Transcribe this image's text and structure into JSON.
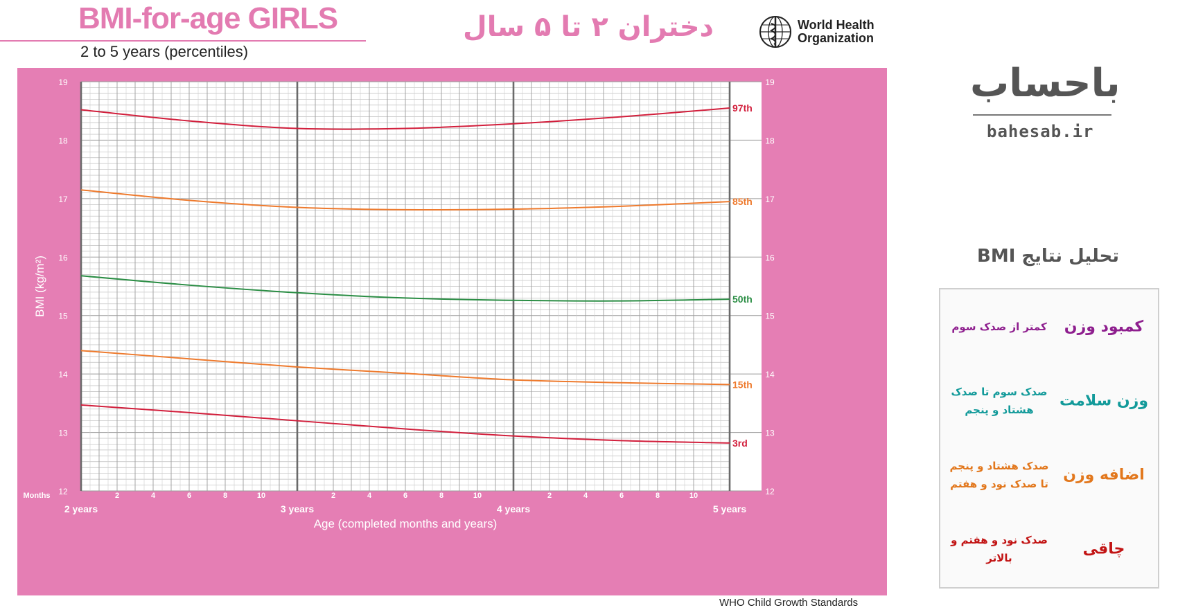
{
  "header": {
    "title": "BMI-for-age GIRLS",
    "subtitle": "2 to 5 years (percentiles)",
    "fa_title": "دختران ۲ تا ۵ سال",
    "who_line1": "World Health",
    "who_line2": "Organization"
  },
  "footer": {
    "source": "WHO Child Growth Standards"
  },
  "brand": {
    "name": "باحساب",
    "url": "bahesab.ir"
  },
  "results": {
    "title": "تحلیل نتایج BMI",
    "rows": [
      {
        "category": "کمبود وزن",
        "description": "کمتر از صدک سوم",
        "color": "#8e1e8e"
      },
      {
        "category": "وزن سلامت",
        "description": "صدک سوم تا صدک هشتاد و پنجم",
        "color": "#129a9a"
      },
      {
        "category": "اضافه وزن",
        "description": "صدک هشتاد و پنجم تا صدک نود و هفتم",
        "color": "#e2771c"
      },
      {
        "category": "چاقی",
        "description": "صدک نود و هفتم و بالاتر",
        "color": "#c21414"
      }
    ]
  },
  "chart_data": {
    "type": "line",
    "title": "BMI-for-age GIRLS",
    "xlabel": "Age (completed months and years)",
    "ylabel": "BMI (kg/m²)",
    "xlim": [
      24,
      60
    ],
    "ylim": [
      12,
      19
    ],
    "months_label": "Months",
    "year_ticks": [
      {
        "x": 24,
        "label": "2 years"
      },
      {
        "x": 36,
        "label": "3 years"
      },
      {
        "x": 48,
        "label": "4 years"
      },
      {
        "x": 60,
        "label": "5 years"
      }
    ],
    "month_ticks": [
      "2",
      "4",
      "6",
      "8",
      "10"
    ],
    "y_ticks": [
      12,
      13,
      14,
      15,
      16,
      17,
      18,
      19
    ],
    "colors": {
      "background": "#e57eb4",
      "grid": "#bdbdbd",
      "major_grid": "#6a6a6a"
    },
    "series": [
      {
        "name": "97th",
        "color": "#d21f3c",
        "x": [
          24,
          30,
          36,
          42,
          48,
          54,
          60
        ],
        "values": [
          18.52,
          18.33,
          18.2,
          18.2,
          18.28,
          18.4,
          18.55
        ]
      },
      {
        "name": "85th",
        "color": "#ee7a2d",
        "x": [
          24,
          30,
          36,
          42,
          48,
          54,
          60
        ],
        "values": [
          17.15,
          16.97,
          16.85,
          16.81,
          16.82,
          16.87,
          16.95
        ]
      },
      {
        "name": "50th",
        "color": "#2a8d44",
        "x": [
          24,
          30,
          36,
          42,
          48,
          54,
          60
        ],
        "values": [
          15.68,
          15.52,
          15.39,
          15.3,
          15.26,
          15.25,
          15.28
        ]
      },
      {
        "name": "15th",
        "color": "#ee7a2d",
        "x": [
          24,
          30,
          36,
          42,
          48,
          54,
          60
        ],
        "values": [
          14.4,
          14.26,
          14.12,
          14.01,
          13.9,
          13.85,
          13.82
        ]
      },
      {
        "name": "3rd",
        "color": "#d21f3c",
        "x": [
          24,
          30,
          36,
          42,
          48,
          54,
          60
        ],
        "values": [
          13.47,
          13.34,
          13.2,
          13.06,
          12.94,
          12.86,
          12.82
        ]
      }
    ]
  }
}
